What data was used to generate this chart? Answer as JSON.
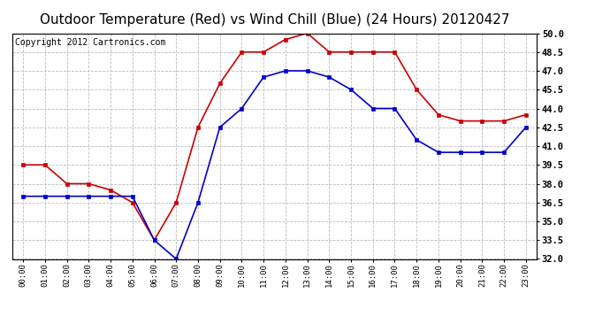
{
  "title": "Outdoor Temperature (Red) vs Wind Chill (Blue) (24 Hours) 20120427",
  "copyright": "Copyright 2012 Cartronics.com",
  "hours": [
    0,
    1,
    2,
    3,
    4,
    5,
    6,
    7,
    8,
    9,
    10,
    11,
    12,
    13,
    14,
    15,
    16,
    17,
    18,
    19,
    20,
    21,
    22,
    23
  ],
  "red_temp": [
    39.5,
    39.5,
    38.0,
    38.0,
    37.5,
    36.5,
    33.5,
    36.5,
    42.5,
    46.0,
    48.5,
    48.5,
    49.5,
    50.0,
    48.5,
    48.5,
    48.5,
    48.5,
    45.5,
    43.5,
    43.0,
    43.0,
    43.0,
    43.5
  ],
  "blue_wc": [
    37.0,
    37.0,
    37.0,
    37.0,
    37.0,
    37.0,
    33.5,
    32.0,
    36.5,
    42.5,
    44.0,
    46.5,
    47.0,
    47.0,
    46.5,
    45.5,
    44.0,
    44.0,
    41.5,
    40.5,
    40.5,
    40.5,
    40.5,
    42.5
  ],
  "ylim": [
    32.0,
    50.0
  ],
  "yticks": [
    32.0,
    33.5,
    35.0,
    36.5,
    38.0,
    39.5,
    41.0,
    42.5,
    44.0,
    45.5,
    47.0,
    48.5,
    50.0
  ],
  "red_color": "#cc0000",
  "blue_color": "#0000cc",
  "grid_color": "#bbbbbb",
  "background_color": "#ffffff",
  "title_fontsize": 11,
  "copyright_fontsize": 7
}
